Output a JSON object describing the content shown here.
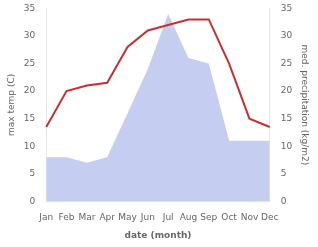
{
  "chart_data": {
    "type": "line",
    "categories": [
      "Jan",
      "Feb",
      "Mar",
      "Apr",
      "May",
      "Jun",
      "Jul",
      "Aug",
      "Sep",
      "Oct",
      "Nov",
      "Dec"
    ],
    "xlabel": "date (month)",
    "ylabel": "max temp (C)",
    "y2label": "med. precipitation (kg/m2)",
    "series": [
      {
        "type": "area",
        "axis": "y2",
        "color": "#c5cdf0",
        "values": [
          8.0,
          8.0,
          7.0,
          8.0,
          16.0,
          24.0,
          34.0,
          26.0,
          25.0,
          11.0,
          11.0,
          11.0
        ]
      },
      {
        "type": "line",
        "color": "#c83030",
        "values": [
          13.5,
          20.0,
          21.0,
          21.5,
          28.0,
          31.0,
          32.0,
          33.0,
          33.0,
          25.0,
          15.0,
          13.5
        ]
      }
    ],
    "ylim": [
      0,
      35
    ],
    "yticks": [
      0,
      5,
      10,
      15,
      20,
      25,
      30,
      35
    ],
    "y2lim": [
      0,
      35
    ],
    "y2ticks": [
      0,
      5,
      10,
      15,
      20,
      25,
      30,
      35
    ],
    "grid": false
  }
}
